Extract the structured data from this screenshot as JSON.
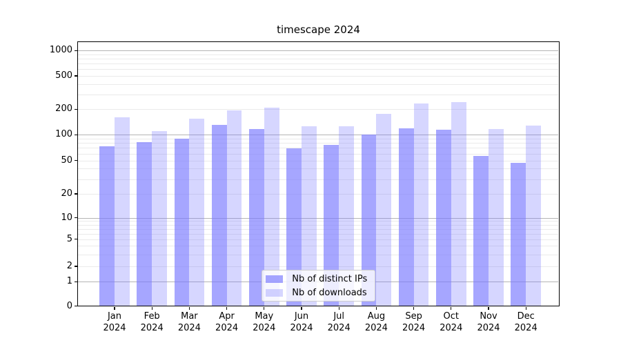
{
  "chart_data": {
    "type": "bar",
    "title": "timescape 2024",
    "categories": [
      "Jan",
      "Feb",
      "Mar",
      "Apr",
      "May",
      "Jun",
      "Jul",
      "Aug",
      "Sep",
      "Oct",
      "Nov",
      "Dec"
    ],
    "category_year": "2024",
    "series": [
      {
        "name": "Nb of distinct IPs",
        "color": "rgba(119,119,255,0.65)",
        "values": [
          73,
          82,
          90,
          130,
          117,
          69,
          76,
          100,
          120,
          115,
          56,
          47
        ]
      },
      {
        "name": "Nb of downloads",
        "color": "rgba(119,119,255,0.30)",
        "values": [
          160,
          110,
          155,
          193,
          210,
          127,
          127,
          176,
          234,
          245,
          118,
          129
        ]
      }
    ],
    "y_ticks": [
      0,
      1,
      2,
      5,
      10,
      20,
      50,
      100,
      200,
      500,
      1000
    ],
    "y_scale": "symlog",
    "ylim": [
      0,
      1000
    ],
    "grid": "horizontal major+minor",
    "legend_position": "lower center inside plot",
    "colors": {
      "axis": "#000000",
      "major_grid": "#b4b4b4",
      "minor_grid": "#eaeaea",
      "text": "#000000"
    }
  }
}
